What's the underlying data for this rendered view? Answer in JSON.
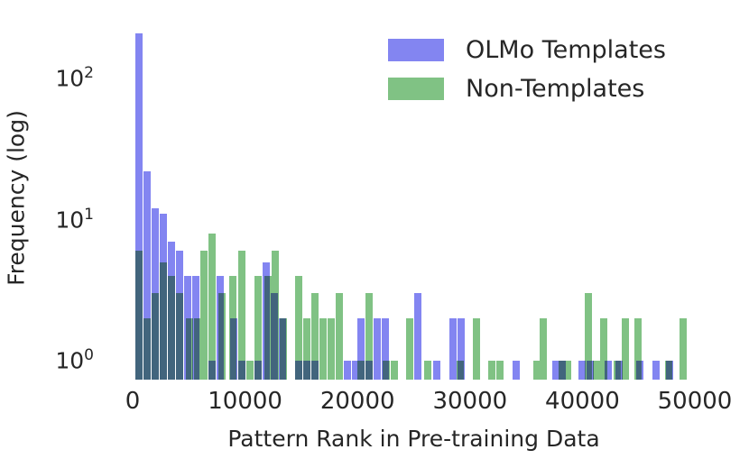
{
  "chart_data": {
    "type": "bar",
    "subtype": "overlaid-log-histogram",
    "title": "",
    "xlabel": "Pattern Rank in Pre-training Data",
    "ylabel": "Frequency (log)",
    "yscale": "log",
    "xlim": [
      0,
      52500
    ],
    "ylim_log_exponents": [
      -0.135,
      2.5
    ],
    "grid": false,
    "x_ticks": [
      "0",
      "10000",
      "20000",
      "30000",
      "40000",
      "50000"
    ],
    "x_tick_values": [
      0,
      10000,
      20000,
      30000,
      40000,
      50000
    ],
    "y_ticks": [
      {
        "value": 100,
        "base": "10",
        "exp": "2"
      },
      {
        "value": 10,
        "base": "10",
        "exp": "1"
      },
      {
        "value": 1,
        "base": "10",
        "exp": "0"
      }
    ],
    "legend_position": "upper right",
    "bin_width": 720,
    "overlap_color": "#3f7a78",
    "series": [
      {
        "name": "OLMo Templates",
        "color": "#8385f1",
        "bars": [
          [
            240,
            210
          ],
          [
            960,
            22
          ],
          [
            1690,
            12
          ],
          [
            2410,
            11
          ],
          [
            3130,
            7
          ],
          [
            3850,
            6
          ],
          [
            4580,
            4
          ],
          [
            5300,
            4
          ],
          [
            6740,
            1
          ],
          [
            7470,
            4
          ],
          [
            8670,
            2
          ],
          [
            9390,
            1
          ],
          [
            10830,
            1
          ],
          [
            11560,
            5
          ],
          [
            12280,
            3
          ],
          [
            13000,
            2
          ],
          [
            14450,
            1
          ],
          [
            15170,
            1
          ],
          [
            15890,
            1
          ],
          [
            18780,
            1
          ],
          [
            19500,
            1
          ],
          [
            19980,
            2
          ],
          [
            20700,
            1
          ],
          [
            21430,
            2
          ],
          [
            22150,
            2
          ],
          [
            25040,
            3
          ],
          [
            26730,
            1
          ],
          [
            28170,
            2
          ],
          [
            28900,
            2
          ],
          [
            33790,
            1
          ],
          [
            37320,
            1
          ],
          [
            37880,
            1
          ],
          [
            39650,
            1
          ],
          [
            40370,
            1
          ],
          [
            41970,
            1
          ],
          [
            42930,
            1
          ],
          [
            44780,
            1
          ],
          [
            46220,
            1
          ],
          [
            47430,
            1
          ]
        ]
      },
      {
        "name": "Non-Templates",
        "color": "#80c284",
        "bars": [
          [
            240,
            6
          ],
          [
            960,
            2
          ],
          [
            1690,
            3
          ],
          [
            2410,
            5
          ],
          [
            3130,
            4
          ],
          [
            3850,
            3
          ],
          [
            4730,
            2
          ],
          [
            5460,
            2
          ],
          [
            6020,
            6
          ],
          [
            6740,
            8
          ],
          [
            7630,
            3
          ],
          [
            8590,
            4
          ],
          [
            9390,
            6
          ],
          [
            10110,
            1
          ],
          [
            10830,
            4
          ],
          [
            11720,
            4
          ],
          [
            12360,
            6
          ],
          [
            13080,
            2
          ],
          [
            14450,
            4
          ],
          [
            15170,
            2
          ],
          [
            15890,
            3
          ],
          [
            16610,
            2
          ],
          [
            17340,
            2
          ],
          [
            18060,
            3
          ],
          [
            19980,
            1
          ],
          [
            20700,
            3
          ],
          [
            22230,
            1
          ],
          [
            22950,
            1
          ],
          [
            24320,
            2
          ],
          [
            25920,
            1
          ],
          [
            28810,
            1
          ],
          [
            30250,
            2
          ],
          [
            31620,
            1
          ],
          [
            32340,
            1
          ],
          [
            35630,
            1
          ],
          [
            36190,
            2
          ],
          [
            37900,
            1
          ],
          [
            38360,
            1
          ],
          [
            40210,
            3
          ],
          [
            40930,
            1
          ],
          [
            41570,
            2
          ],
          [
            42780,
            1
          ],
          [
            43500,
            2
          ],
          [
            44620,
            2
          ],
          [
            47350,
            1
          ],
          [
            48630,
            2
          ]
        ]
      }
    ]
  }
}
